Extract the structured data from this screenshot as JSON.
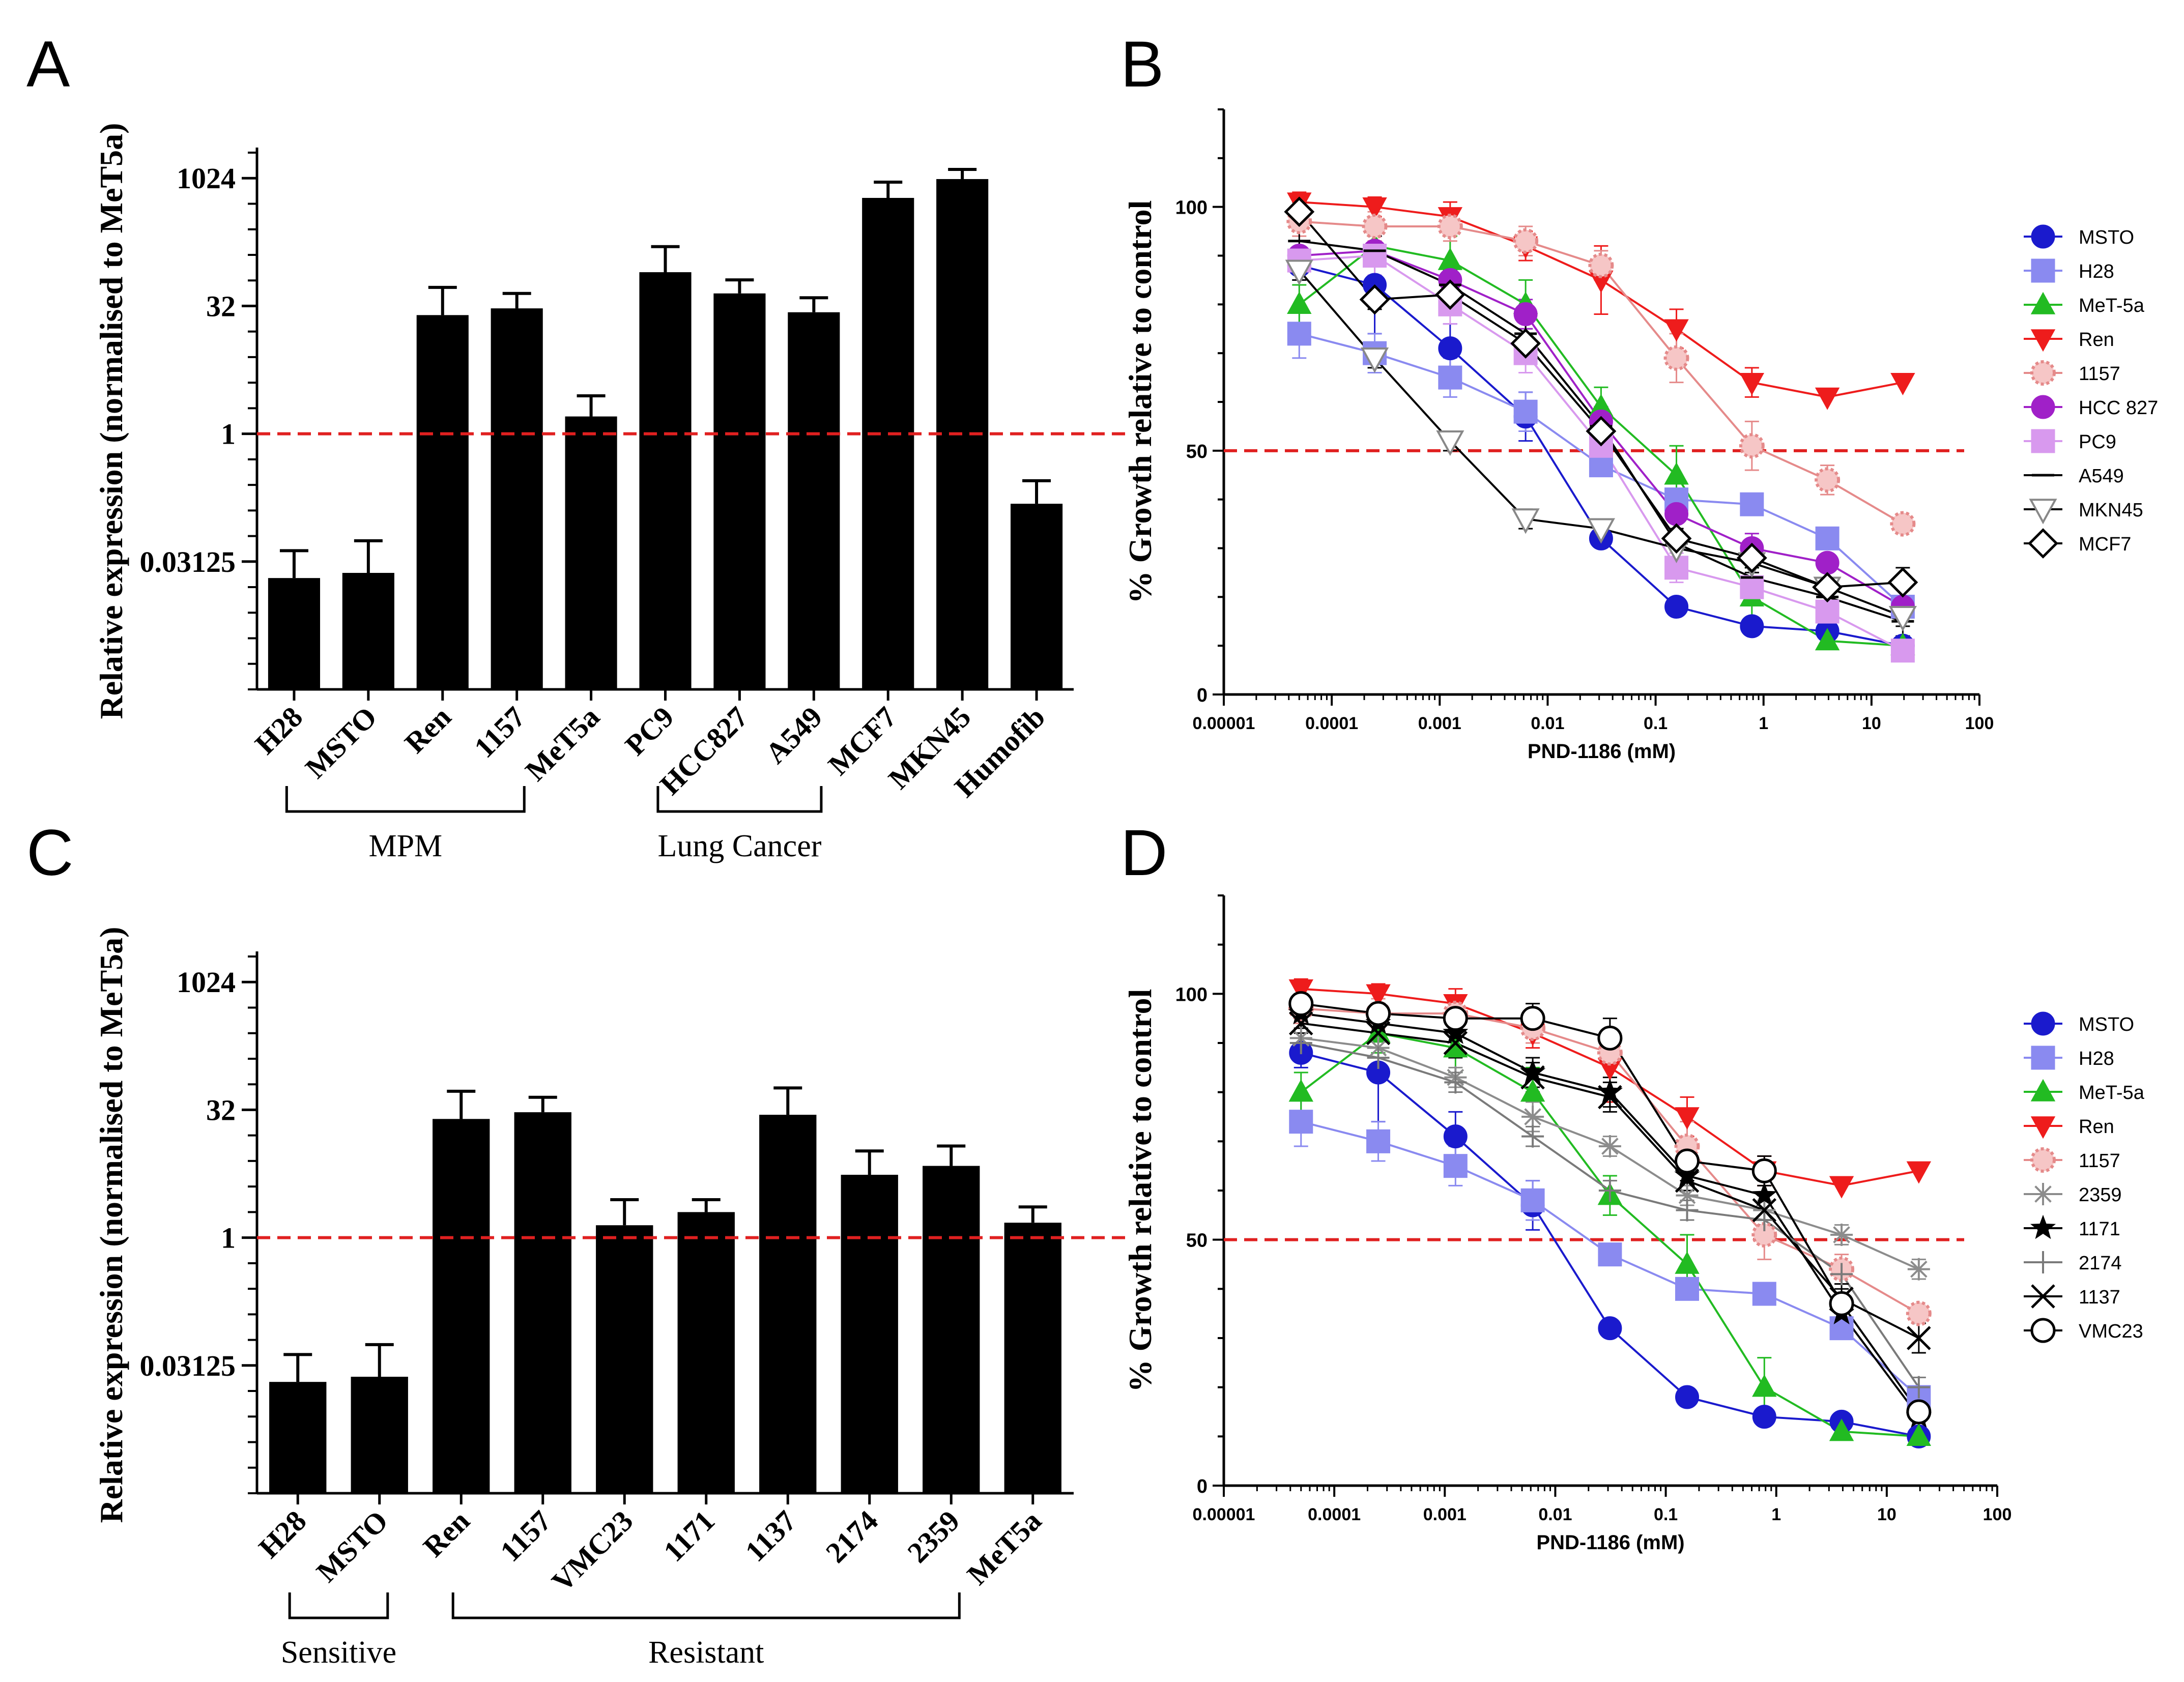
{
  "panels": [
    {
      "letter": "A"
    },
    {
      "letter": "B"
    },
    {
      "letter": "C"
    },
    {
      "letter": "D"
    }
  ],
  "chart_data": [
    {
      "panel": "A",
      "type": "bar",
      "ylabel": "Relative expression (normalised to MeT5a)",
      "yscale": "log2",
      "ylim": [
        0.0009765625,
        2048
      ],
      "yticks": [
        1024,
        32,
        1,
        0.03125
      ],
      "ytick_labels": [
        "1024",
        "32",
        "1",
        "0.03125"
      ],
      "categories": [
        "H28",
        "MSTO",
        "Ren",
        "1157",
        "MeT5a",
        "PC9",
        "HCC827",
        "A549",
        "MCF7",
        "MKN45",
        "Humofib"
      ],
      "values": [
        0.02,
        0.023,
        25,
        30,
        1.6,
        80,
        45,
        27,
        600,
        1000,
        0.15
      ],
      "errors": [
        0.022,
        0.032,
        28,
        15,
        1.2,
        80,
        20,
        13,
        320,
        300,
        0.13
      ],
      "reference_line": 1,
      "reference_color": "#e02020",
      "groups": [
        {
          "label": "MPM",
          "from": "H28",
          "to": "1157"
        },
        {
          "label": "Lung Cancer",
          "from": "PC9",
          "to": "A549"
        }
      ]
    },
    {
      "panel": "B",
      "type": "line",
      "xlabel": "PND-1186 (mM)",
      "ylabel": "% Growth relative to control",
      "xscale": "log10",
      "xlim": [
        1e-05,
        100
      ],
      "ylim": [
        0,
        120
      ],
      "xtick_labels": [
        "0.00001",
        "0.0001",
        "0.001",
        "0.01",
        "0.1",
        "1",
        "10",
        "100"
      ],
      "yticks": [
        0,
        50,
        100
      ],
      "reference_line": 50,
      "x": [
        5e-05,
        0.00025,
        0.00125,
        0.00625,
        0.03125,
        0.156,
        0.78,
        3.9,
        19.5
      ],
      "series": [
        {
          "name": "MSTO",
          "color": "#1a1acd",
          "marker": "circle",
          "values": [
            88,
            84,
            71,
            57,
            32,
            18,
            14,
            13,
            10
          ],
          "errors": [
            3,
            10,
            5,
            5,
            0,
            0,
            0,
            0,
            0
          ]
        },
        {
          "name": "H28",
          "color": "#8a8af0",
          "marker": "square",
          "values": [
            74,
            70,
            65,
            58,
            47,
            40,
            39,
            32,
            18
          ],
          "errors": [
            5,
            4,
            4,
            4,
            2,
            2,
            0,
            0,
            0
          ]
        },
        {
          "name": "MeT-5a",
          "color": "#22bb22",
          "marker": "triangle-up",
          "values": [
            80,
            92,
            89,
            80,
            59,
            45,
            20,
            11,
            10
          ],
          "errors": [
            4,
            4,
            5,
            5,
            4,
            6,
            6,
            0,
            0
          ]
        },
        {
          "name": "Ren",
          "color": "#ee1c1c",
          "marker": "triangle-down",
          "values": [
            101,
            100,
            98,
            92,
            85,
            75,
            64,
            61,
            64
          ],
          "errors": [
            2,
            2,
            3,
            3,
            7,
            4,
            3,
            0,
            0
          ]
        },
        {
          "name": "1157",
          "color": "#e58a8a",
          "marker": "flower",
          "values": [
            97,
            96,
            96,
            93,
            88,
            69,
            51,
            44,
            35
          ],
          "errors": [
            3,
            3,
            3,
            3,
            3,
            5,
            5,
            3,
            0
          ]
        },
        {
          "name": "HCC 827",
          "color": "#a020c8",
          "marker": "circle",
          "values": [
            90,
            91,
            85,
            78,
            56,
            37,
            30,
            27,
            18
          ],
          "errors": [
            3,
            3,
            3,
            3,
            3,
            3,
            3,
            0,
            0
          ]
        },
        {
          "name": "PC9",
          "color": "#d899ee",
          "marker": "square",
          "values": [
            89,
            90,
            80,
            70,
            51,
            26,
            22,
            17,
            9
          ],
          "errors": [
            4,
            4,
            4,
            4,
            4,
            3,
            3,
            3,
            0
          ]
        },
        {
          "name": "A549",
          "color": "#000000",
          "marker": "dash",
          "values": [
            93,
            91,
            84,
            74,
            55,
            31,
            24,
            20,
            15
          ],
          "errors": [
            3,
            3,
            3,
            3,
            3,
            3,
            3,
            3,
            3
          ]
        },
        {
          "name": "MKN45",
          "color": "#000000",
          "marker": "triangle-down-open",
          "values": [
            87,
            69,
            52,
            36,
            34,
            30,
            27,
            22,
            16
          ],
          "errors": [
            2,
            2,
            2,
            2,
            2,
            2,
            2,
            2,
            2
          ]
        },
        {
          "name": "MCF7",
          "color": "#000000",
          "marker": "diamond-open",
          "values": [
            99,
            81,
            82,
            72,
            54,
            32,
            28,
            22,
            23
          ],
          "errors": [
            2,
            2,
            2,
            2,
            2,
            2,
            2,
            2,
            3
          ]
        }
      ]
    },
    {
      "panel": "C",
      "type": "bar",
      "ylabel": "Relative expression (normalised to MeT5a)",
      "yscale": "log2",
      "ylim": [
        0.0009765625,
        2048
      ],
      "yticks": [
        1024,
        32,
        1,
        0.03125
      ],
      "ytick_labels": [
        "1024",
        "32",
        "1",
        "0.03125"
      ],
      "categories": [
        "H28",
        "MSTO",
        "Ren",
        "1157",
        "VMC23",
        "1171",
        "1137",
        "2174",
        "2359",
        "MeT5a"
      ],
      "values": [
        0.02,
        0.023,
        25,
        30,
        1.4,
        2.0,
        28,
        5.5,
        7.0,
        1.5
      ],
      "errors": [
        0.022,
        0.032,
        28,
        15,
        1.4,
        0.8,
        30,
        5,
        5,
        0.8
      ],
      "reference_line": 1,
      "reference_color": "#e02020",
      "groups": [
        {
          "label": "Sensitive",
          "from": "H28",
          "to": "MSTO"
        },
        {
          "label": "Resistant",
          "from": "Ren",
          "to": "2359"
        }
      ]
    },
    {
      "panel": "D",
      "type": "line",
      "xlabel": "PND-1186 (mM)",
      "ylabel": "% Growth relative to control",
      "xscale": "log10",
      "xlim": [
        1e-05,
        100
      ],
      "ylim": [
        0,
        120
      ],
      "xtick_labels": [
        "0.00001",
        "0.0001",
        "0.001",
        "0.01",
        "0.1",
        "1",
        "10",
        "100"
      ],
      "yticks": [
        0,
        50,
        100
      ],
      "reference_line": 50,
      "x": [
        5e-05,
        0.00025,
        0.00125,
        0.00625,
        0.03125,
        0.156,
        0.78,
        3.9,
        19.5
      ],
      "series": [
        {
          "name": "MSTO",
          "color": "#1a1acd",
          "marker": "circle",
          "values": [
            88,
            84,
            71,
            57,
            32,
            18,
            14,
            13,
            10
          ],
          "errors": [
            3,
            10,
            5,
            5,
            0,
            0,
            0,
            0,
            0
          ]
        },
        {
          "name": "H28",
          "color": "#8a8af0",
          "marker": "square",
          "values": [
            74,
            70,
            65,
            58,
            47,
            40,
            39,
            32,
            18
          ],
          "errors": [
            5,
            4,
            4,
            4,
            2,
            2,
            0,
            0,
            0
          ]
        },
        {
          "name": "MeT-5a",
          "color": "#22bb22",
          "marker": "triangle-up",
          "values": [
            80,
            92,
            89,
            80,
            59,
            45,
            20,
            11,
            10
          ],
          "errors": [
            4,
            4,
            5,
            5,
            4,
            6,
            6,
            0,
            0
          ]
        },
        {
          "name": "Ren",
          "color": "#ee1c1c",
          "marker": "triangle-down",
          "values": [
            101,
            100,
            98,
            92,
            85,
            75,
            64,
            61,
            64
          ],
          "errors": [
            2,
            2,
            3,
            3,
            7,
            4,
            3,
            0,
            0
          ]
        },
        {
          "name": "1157",
          "color": "#e58a8a",
          "marker": "flower",
          "values": [
            97,
            96,
            96,
            93,
            88,
            69,
            51,
            44,
            35
          ],
          "errors": [
            3,
            3,
            3,
            3,
            3,
            5,
            5,
            3,
            0
          ]
        },
        {
          "name": "2359",
          "color": "#8c8c8c",
          "marker": "asterisk",
          "values": [
            91,
            89,
            83,
            75,
            69,
            59,
            56,
            51,
            44
          ],
          "errors": [
            2,
            2,
            2,
            3,
            2,
            2,
            2,
            2,
            2
          ]
        },
        {
          "name": "1171",
          "color": "#000000",
          "marker": "star",
          "values": [
            96,
            94,
            92,
            84,
            80,
            63,
            59,
            35,
            14
          ],
          "errors": [
            3,
            3,
            3,
            3,
            3,
            3,
            3,
            3,
            2
          ]
        },
        {
          "name": "2174",
          "color": "#7a7a7a",
          "marker": "plus",
          "values": [
            90,
            87,
            82,
            71,
            60,
            56,
            54,
            43,
            20
          ],
          "errors": [
            2,
            2,
            2,
            2,
            2,
            2,
            2,
            2,
            2
          ]
        },
        {
          "name": "1137",
          "color": "#000000",
          "marker": "x",
          "values": [
            94,
            92,
            90,
            83,
            79,
            62,
            56,
            38,
            30
          ],
          "errors": [
            2,
            3,
            3,
            3,
            3,
            3,
            3,
            3,
            3
          ]
        },
        {
          "name": "VMC23",
          "color": "#000000",
          "marker": "circle-open",
          "values": [
            98,
            96,
            95,
            95,
            91,
            66,
            64,
            37,
            15
          ],
          "errors": [
            2,
            2,
            2,
            3,
            4,
            4,
            3,
            3,
            2
          ]
        }
      ]
    }
  ]
}
